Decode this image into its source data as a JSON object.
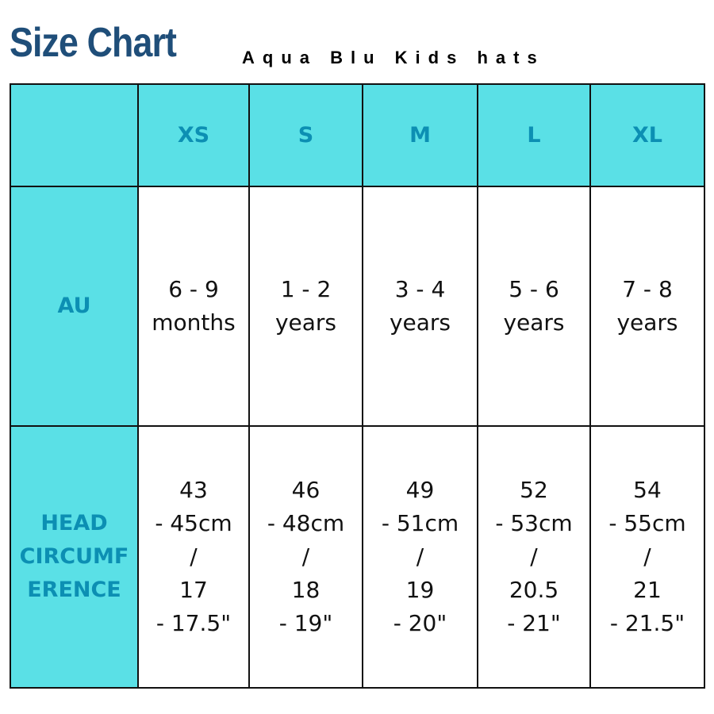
{
  "header": {
    "title": "Size Chart",
    "subtitle": "Aqua Blu Kids hats"
  },
  "table": {
    "columns": [
      "",
      "XS",
      "S",
      "M",
      "L",
      "XL"
    ],
    "rows": [
      {
        "label": "AU",
        "cells": [
          "6 - 9\nmonths",
          "1 - 2\nyears",
          "3 - 4\nyears",
          "5 - 6\nyears",
          "7 - 8\nyears"
        ]
      },
      {
        "label": "HEAD\nCIRCUMF\nERENCE",
        "cells": [
          "43\n- 45cm\n/\n17\n- 17.5\"",
          "46\n- 48cm\n/\n18\n- 19\"",
          "49\n- 51cm\n/\n19\n- 20\"",
          "52\n- 53cm\n/\n20.5\n- 21\"",
          "54\n- 55cm\n/\n21\n- 21.5\""
        ]
      }
    ]
  },
  "colors": {
    "title": "#1f4e79",
    "header_fill": "#5ae0e6",
    "header_text": "#0c8fb3",
    "border": "#111111"
  }
}
